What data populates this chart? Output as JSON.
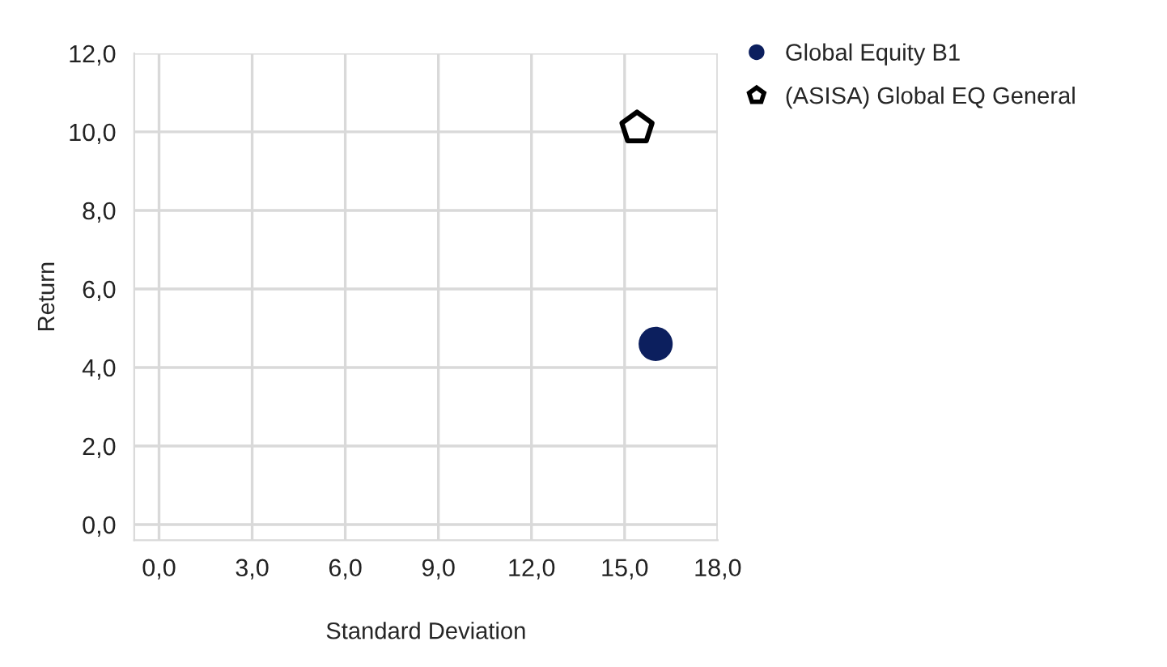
{
  "chart_data": {
    "type": "scatter",
    "xlabel": "Standard Deviation",
    "ylabel": "Return",
    "xlim": [
      -0.8,
      18.0
    ],
    "ylim": [
      -0.4,
      12.0
    ],
    "xticks": [
      {
        "value": 0,
        "label": "0,0"
      },
      {
        "value": 3,
        "label": "3,0"
      },
      {
        "value": 6,
        "label": "6,0"
      },
      {
        "value": 9,
        "label": "9,0"
      },
      {
        "value": 12,
        "label": "12,0"
      },
      {
        "value": 15,
        "label": "15,0"
      },
      {
        "value": 18,
        "label": "18,0"
      }
    ],
    "yticks": [
      {
        "value": 0,
        "label": "0,0"
      },
      {
        "value": 2,
        "label": "2,0"
      },
      {
        "value": 4,
        "label": "4,0"
      },
      {
        "value": 6,
        "label": "6,0"
      },
      {
        "value": 8,
        "label": "8,0"
      },
      {
        "value": 10,
        "label": "10,0"
      },
      {
        "value": 12,
        "label": "12,0"
      }
    ],
    "grid": true,
    "legend": "top right",
    "series": [
      {
        "name": "Global Equity B1",
        "color": "#0c1f5e",
        "marker": "circle",
        "x": [
          16.0
        ],
        "values": [
          4.6
        ]
      },
      {
        "name": "(ASISA) Global EQ General",
        "color": "#000000",
        "x": [
          15.4
        ],
        "values": [
          10.1
        ]
      }
    ]
  }
}
